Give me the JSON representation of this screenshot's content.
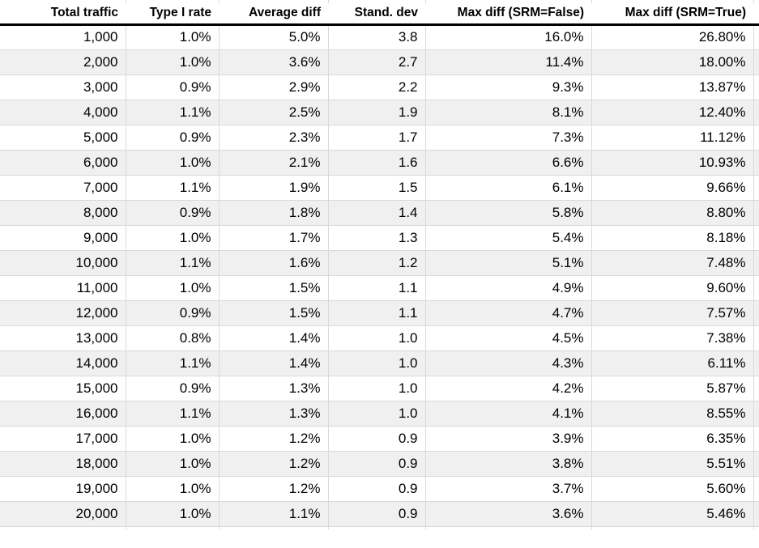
{
  "colors": {
    "background": "#ffffff",
    "row_alt_background": "#f0f0f0",
    "gridline": "#d9d9d9",
    "header_rule": "#000000",
    "text": "#000000"
  },
  "chart_data": {
    "type": "table",
    "columns": [
      "Total traffic",
      "Type I rate",
      "Average diff",
      "Stand. dev",
      "Max diff (SRM=False)",
      "Max diff (SRM=True)"
    ],
    "rows": [
      [
        "1,000",
        "1.0%",
        "5.0%",
        "3.8",
        "16.0%",
        "26.80%"
      ],
      [
        "2,000",
        "1.0%",
        "3.6%",
        "2.7",
        "11.4%",
        "18.00%"
      ],
      [
        "3,000",
        "0.9%",
        "2.9%",
        "2.2",
        "9.3%",
        "13.87%"
      ],
      [
        "4,000",
        "1.1%",
        "2.5%",
        "1.9",
        "8.1%",
        "12.40%"
      ],
      [
        "5,000",
        "0.9%",
        "2.3%",
        "1.7",
        "7.3%",
        "11.12%"
      ],
      [
        "6,000",
        "1.0%",
        "2.1%",
        "1.6",
        "6.6%",
        "10.93%"
      ],
      [
        "7,000",
        "1.1%",
        "1.9%",
        "1.5",
        "6.1%",
        "9.66%"
      ],
      [
        "8,000",
        "0.9%",
        "1.8%",
        "1.4",
        "5.8%",
        "8.80%"
      ],
      [
        "9,000",
        "1.0%",
        "1.7%",
        "1.3",
        "5.4%",
        "8.18%"
      ],
      [
        "10,000",
        "1.1%",
        "1.6%",
        "1.2",
        "5.1%",
        "7.48%"
      ],
      [
        "11,000",
        "1.0%",
        "1.5%",
        "1.1",
        "4.9%",
        "9.60%"
      ],
      [
        "12,000",
        "0.9%",
        "1.5%",
        "1.1",
        "4.7%",
        "7.57%"
      ],
      [
        "13,000",
        "0.8%",
        "1.4%",
        "1.0",
        "4.5%",
        "7.38%"
      ],
      [
        "14,000",
        "1.1%",
        "1.4%",
        "1.0",
        "4.3%",
        "6.11%"
      ],
      [
        "15,000",
        "0.9%",
        "1.3%",
        "1.0",
        "4.2%",
        "5.87%"
      ],
      [
        "16,000",
        "1.1%",
        "1.3%",
        "1.0",
        "4.1%",
        "8.55%"
      ],
      [
        "17,000",
        "1.0%",
        "1.2%",
        "0.9",
        "3.9%",
        "6.35%"
      ],
      [
        "18,000",
        "1.0%",
        "1.2%",
        "0.9",
        "3.8%",
        "5.51%"
      ],
      [
        "19,000",
        "1.0%",
        "1.2%",
        "0.9",
        "3.7%",
        "5.60%"
      ],
      [
        "20,000",
        "1.0%",
        "1.1%",
        "0.9",
        "3.6%",
        "5.46%"
      ]
    ]
  }
}
